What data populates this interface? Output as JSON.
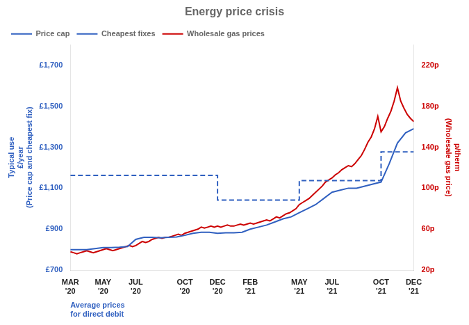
{
  "chart_data": {
    "type": "line",
    "title": "Energy price crisis",
    "xlabel": "Average prices\nfor direct debit",
    "ylabel": "Typical use\n£/year",
    "ylabel_note": "(Price cap and cheapest fix)",
    "y2label": "p/therm",
    "y2label_note": "(Wholesale gas price)",
    "xlim": [
      0,
      21
    ],
    "xticks": [
      {
        "value": 0,
        "label": "MAR\n'20"
      },
      {
        "value": 2,
        "label": "MAY\n'20"
      },
      {
        "value": 4,
        "label": "JUL\n'20"
      },
      {
        "value": 7,
        "label": "OCT\n'20"
      },
      {
        "value": 9,
        "label": "DEC\n'20"
      },
      {
        "value": 11,
        "label": "FEB\n'21"
      },
      {
        "value": 14,
        "label": "MAY\n'21"
      },
      {
        "value": 16,
        "label": "JUL\n'21"
      },
      {
        "value": 19,
        "label": "OCT\n'21"
      },
      {
        "value": 21,
        "label": "DEC\n'21"
      }
    ],
    "ylim": [
      700,
      1800
    ],
    "yticks": [
      {
        "value": 700,
        "label": "£700"
      },
      {
        "value": 900,
        "label": "£900"
      },
      {
        "value": 1100,
        "label": "£1,100"
      },
      {
        "value": 1300,
        "label": "£1,300"
      },
      {
        "value": 1500,
        "label": "£1,500"
      },
      {
        "value": 1700,
        "label": "£1,700"
      }
    ],
    "y2lim": [
      20,
      240
    ],
    "y2ticks": [
      {
        "value": 20,
        "label": "20p"
      },
      {
        "value": 60,
        "label": "60p"
      },
      {
        "value": 100,
        "label": "100p"
      },
      {
        "value": 140,
        "label": "140p"
      },
      {
        "value": 180,
        "label": "180p"
      },
      {
        "value": 220,
        "label": "220p"
      }
    ],
    "grid": false,
    "legend": "upper left",
    "series": [
      {
        "name": "Price cap",
        "type": "step",
        "line_style": "dashed",
        "color": "#3060c0",
        "x": [
          0,
          2,
          4,
          7,
          9,
          9,
          11,
          14,
          14,
          19,
          19,
          21
        ],
        "values": [
          1162,
          1162,
          1162,
          1162,
          1162,
          1042,
          1042,
          1042,
          1137,
          1137,
          1277,
          1277
        ]
      },
      {
        "name": "Cheapest fixes",
        "line_style": "solid",
        "color": "#3060c0",
        "x": [
          0,
          0.5,
          1,
          1.5,
          2,
          2.5,
          3,
          3.5,
          4,
          4.5,
          5,
          5.5,
          6,
          6.5,
          7,
          7.5,
          8,
          8.5,
          9,
          9.5,
          10,
          10.5,
          11,
          11.5,
          12,
          12.5,
          13,
          13.5,
          14,
          14.5,
          15,
          15.5,
          16,
          16.5,
          17,
          17.5,
          18,
          18.5,
          19,
          19.5,
          20,
          20.5,
          21
        ],
        "values": [
          800,
          800,
          800,
          805,
          810,
          810,
          812,
          815,
          850,
          860,
          860,
          858,
          860,
          862,
          870,
          880,
          885,
          885,
          880,
          882,
          882,
          885,
          900,
          910,
          920,
          935,
          950,
          960,
          980,
          1000,
          1020,
          1050,
          1080,
          1090,
          1100,
          1100,
          1110,
          1120,
          1130,
          1220,
          1320,
          1370,
          1390
        ]
      },
      {
        "name": "Wholesale gas prices",
        "axis": "y2",
        "line_style": "solid",
        "color": "#cc0000",
        "x": [
          0,
          0.2,
          0.4,
          0.6,
          0.8,
          1,
          1.2,
          1.4,
          1.6,
          1.8,
          2,
          2.2,
          2.4,
          2.6,
          2.8,
          3,
          3.2,
          3.4,
          3.6,
          3.8,
          4,
          4.2,
          4.4,
          4.6,
          4.8,
          5,
          5.2,
          5.4,
          5.6,
          5.8,
          6,
          6.2,
          6.4,
          6.6,
          6.8,
          7,
          7.2,
          7.4,
          7.6,
          7.8,
          8,
          8.2,
          8.4,
          8.6,
          8.8,
          9,
          9.2,
          9.4,
          9.6,
          9.8,
          10,
          10.2,
          10.4,
          10.6,
          10.8,
          11,
          11.2,
          11.4,
          11.6,
          11.8,
          12,
          12.2,
          12.4,
          12.6,
          12.8,
          13,
          13.2,
          13.4,
          13.6,
          13.8,
          14,
          14.2,
          14.4,
          14.6,
          14.8,
          15,
          15.2,
          15.4,
          15.6,
          15.8,
          16,
          16.2,
          16.4,
          16.6,
          16.8,
          17,
          17.2,
          17.4,
          17.6,
          17.8,
          18,
          18.2,
          18.4,
          18.6,
          18.8,
          19,
          19.2,
          19.4,
          19.6,
          19.8,
          20,
          20.2,
          20.4,
          20.6,
          20.8,
          21
        ],
        "values": [
          38,
          37,
          36,
          37,
          38,
          39,
          38,
          37,
          38,
          39,
          40,
          41,
          40,
          39,
          40,
          41,
          42,
          43,
          44,
          43,
          44,
          46,
          48,
          47,
          48,
          50,
          51,
          52,
          51,
          52,
          52,
          53,
          54,
          55,
          54,
          56,
          57,
          58,
          59,
          60,
          62,
          61,
          62,
          63,
          62,
          63,
          62,
          63,
          64,
          63,
          63,
          64,
          65,
          64,
          65,
          66,
          65,
          66,
          67,
          68,
          69,
          68,
          70,
          72,
          71,
          73,
          75,
          76,
          78,
          80,
          84,
          86,
          88,
          90,
          93,
          96,
          99,
          102,
          106,
          108,
          110,
          113,
          115,
          118,
          120,
          122,
          121,
          124,
          128,
          132,
          138,
          145,
          150,
          158,
          170,
          155,
          160,
          168,
          175,
          185,
          198,
          185,
          178,
          172,
          168,
          165
        ]
      }
    ]
  }
}
